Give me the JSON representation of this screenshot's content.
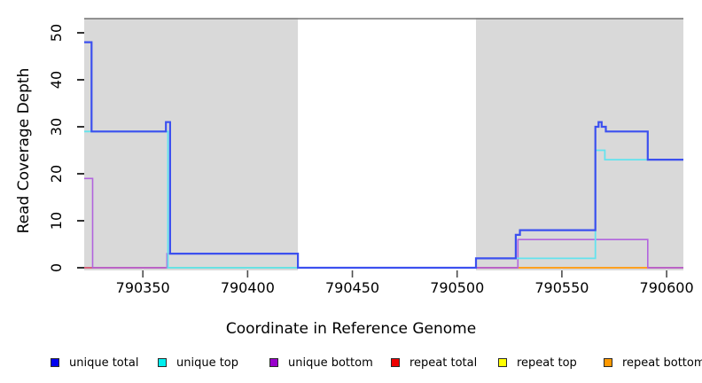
{
  "page": {
    "background": "#ffffff"
  },
  "axes": {
    "xlabel": "Coordinate in Reference Genome",
    "ylabel": "Read Coverage Depth"
  },
  "chart_data": {
    "type": "line",
    "subtype": "step-coverage",
    "title": "",
    "xlabel": "Coordinate in Reference Genome",
    "ylabel": "Read Coverage Depth",
    "xlim": [
      790322,
      790608
    ],
    "ylim": [
      0,
      53.2
    ],
    "x_ticks": [
      790350,
      790400,
      790450,
      790500,
      790550,
      790600
    ],
    "y_ticks": [
      0,
      10,
      20,
      30,
      40,
      50
    ],
    "grid": false,
    "legend_position": "bottom",
    "top_rule_value": 53,
    "top_rule_color": "#808080",
    "shade_color": "#d9d9d9",
    "shaded_regions": [
      {
        "x0": 790322,
        "x1": 790424
      },
      {
        "x0": 790509,
        "x1": 790608
      }
    ],
    "series": [
      {
        "name": "unique total",
        "legend_color": "#0000ee",
        "draw_color": "#3c50ef",
        "width": 2.2,
        "steps": [
          [
            790322,
            48
          ],
          [
            790325.5,
            29
          ],
          [
            790361,
            31
          ],
          [
            790363,
            3
          ],
          [
            790424,
            0
          ],
          [
            790509,
            2
          ],
          [
            790528,
            7
          ],
          [
            790530,
            8
          ],
          [
            790566,
            30
          ],
          [
            790567.5,
            31
          ],
          [
            790569,
            30
          ],
          [
            790571,
            29
          ],
          [
            790591,
            23
          ],
          [
            790608,
            23
          ]
        ]
      },
      {
        "name": "unique top",
        "legend_color": "#00eeee",
        "draw_color": "#63e3ee",
        "width": 1.8,
        "steps": [
          [
            790322,
            29
          ],
          [
            790362,
            0
          ],
          [
            790509,
            2
          ],
          [
            790566,
            25
          ],
          [
            790570.5,
            23
          ],
          [
            790608,
            23
          ]
        ]
      },
      {
        "name": "unique bottom",
        "legend_color": "#9900cc",
        "draw_color": "#b264de",
        "width": 1.6,
        "steps": [
          [
            790322,
            19
          ],
          [
            790326,
            0
          ],
          [
            790361.5,
            3
          ],
          [
            790424,
            0
          ],
          [
            790529,
            6
          ],
          [
            790591,
            0
          ],
          [
            790608,
            0
          ]
        ]
      },
      {
        "name": "repeat total",
        "legend_color": "#ee0000",
        "draw_color": "#d4607a",
        "width": 1.6,
        "steps": [
          [
            790322,
            0
          ],
          [
            790608,
            0
          ]
        ]
      },
      {
        "name": "repeat top",
        "legend_color": "#ffff00",
        "draw_color": "#ffee33",
        "width": 1.6,
        "steps": [
          [
            790322,
            0
          ],
          [
            790608,
            0
          ]
        ]
      },
      {
        "name": "repeat bottom",
        "legend_color": "#ff9900",
        "draw_color": "#ffa020",
        "width": 1.6,
        "steps": [
          [
            790322,
            0
          ],
          [
            790608,
            0
          ]
        ]
      }
    ],
    "baseline_overlays": [
      {
        "x0": 790322,
        "x1": 790361,
        "color": "#d4607a"
      },
      {
        "x0": 790361,
        "x1": 790424,
        "color": "#90c890"
      },
      {
        "x0": 790424,
        "x1": 790509,
        "color": "#5a3cee"
      },
      {
        "x0": 790509,
        "x1": 790529,
        "color": "#d4607a"
      },
      {
        "x0": 790529,
        "x1": 790591,
        "color": "#ffa020"
      },
      {
        "x0": 790591,
        "x1": 790608,
        "color": "#d4607a"
      }
    ]
  },
  "legend": {
    "items": [
      {
        "label": "unique total",
        "color": "#0000ee"
      },
      {
        "label": "unique top",
        "color": "#00eeee"
      },
      {
        "label": "unique bottom",
        "color": "#9900cc"
      },
      {
        "label": "repeat total",
        "color": "#ee0000"
      },
      {
        "label": "repeat top",
        "color": "#ffff00"
      },
      {
        "label": "repeat bottom",
        "color": "#ff9900"
      }
    ]
  }
}
